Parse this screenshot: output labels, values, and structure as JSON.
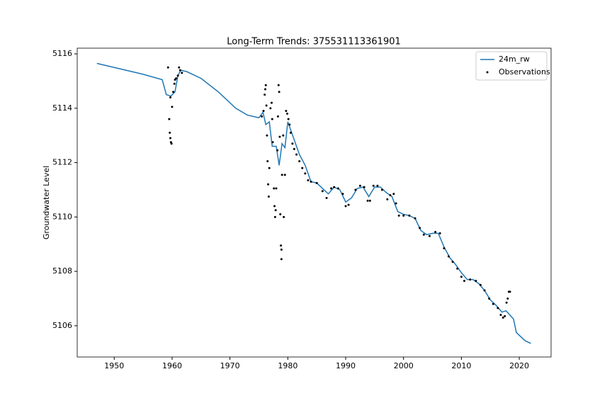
{
  "chart_data": {
    "type": "line_scatter",
    "title": "Long-Term Trends: 375531113361901",
    "y_label": "Groundwater Level",
    "xlim": [
      1943.6,
      2025.5
    ],
    "ylim": [
      5104.85,
      5116.21
    ],
    "xticks": [
      1950,
      1960,
      1970,
      1980,
      1990,
      2000,
      2010,
      2020
    ],
    "yticks": [
      5106,
      5108,
      5110,
      5112,
      5114,
      5116
    ],
    "legend": "upper right",
    "series": [
      {
        "name": "24m_rw",
        "kind": "line",
        "color": "#1f77b4",
        "x": [
          1947,
          1950,
          1955,
          1958.3,
          1959,
          1959.8,
          1960.5,
          1961,
          1961.5,
          1962.5,
          1965,
          1968,
          1971,
          1973,
          1975,
          1975.7,
          1976.2,
          1976.8,
          1977.3,
          1978,
          1978.5,
          1979,
          1979.5,
          1980,
          1981,
          1982,
          1983,
          1984,
          1985,
          1986,
          1987,
          1988,
          1989,
          1990,
          1991,
          1992,
          1993,
          1994,
          1995,
          1996,
          1997,
          1998,
          1999,
          2000,
          2001,
          2002,
          2003,
          2004,
          2005,
          2006,
          2007,
          2008,
          2009,
          2010,
          2011,
          2012,
          2013,
          2014,
          2015,
          2016,
          2017,
          2017.7,
          2019,
          2019.5,
          2021,
          2022
        ],
        "values": [
          5115.65,
          5115.5,
          5115.25,
          5115.05,
          5114.5,
          5114.45,
          5114.6,
          5115.2,
          5115.4,
          5115.35,
          5115.1,
          5114.6,
          5114.0,
          5113.75,
          5113.65,
          5113.85,
          5113.4,
          5113.5,
          5112.6,
          5112.6,
          5111.9,
          5112.7,
          5112.55,
          5113.5,
          5112.9,
          5112.3,
          5111.9,
          5111.3,
          5111.25,
          5111.05,
          5110.85,
          5111.1,
          5111.0,
          5110.55,
          5110.7,
          5111.05,
          5111.1,
          5110.75,
          5111.1,
          5111.1,
          5110.9,
          5110.75,
          5110.2,
          5110.1,
          5110.05,
          5109.95,
          5109.5,
          5109.35,
          5109.4,
          5109.4,
          5108.9,
          5108.5,
          5108.25,
          5107.95,
          5107.7,
          5107.7,
          5107.55,
          5107.3,
          5106.95,
          5106.75,
          5106.5,
          5106.55,
          5106.25,
          5105.75,
          5105.45,
          5105.35
        ]
      },
      {
        "name": "Observations",
        "kind": "scatter",
        "color": "#000000",
        "x": [
          1959.3,
          1959.5,
          1959.6,
          1959.7,
          1959.8,
          1959.9,
          1959.7,
          1960.0,
          1960.2,
          1960.4,
          1960.5,
          1960.7,
          1961.0,
          1961.2,
          1961.4,
          1961.7,
          1975.5,
          1975.8,
          1976.0,
          1976.1,
          1976.2,
          1976.3,
          1976.4,
          1976.5,
          1976.6,
          1976.7,
          1976.8,
          1977.0,
          1977.2,
          1977.3,
          1977.4,
          1977.6,
          1977.7,
          1977.8,
          1977.9,
          1978.0,
          1978.2,
          1978.3,
          1978.4,
          1978.5,
          1978.6,
          1978.7,
          1978.8,
          1978.9,
          1978.9,
          1979.0,
          1979.2,
          1979.3,
          1979.5,
          1979.7,
          1979.9,
          1980.1,
          1980.3,
          1980.5,
          1980.8,
          1981.1,
          1981.5,
          1982,
          1982.5,
          1983,
          1983.5,
          1984,
          1985,
          1986,
          1986.7,
          1987.5,
          1988,
          1988.7,
          1989.5,
          1990,
          1990.5,
          1991.7,
          1992.5,
          1993.2,
          1993.8,
          1994.2,
          1994.8,
          1995.5,
          1996.3,
          1997.2,
          1997.7,
          1998.3,
          1998.7,
          1999.2,
          2000,
          2001,
          2002,
          2002.8,
          2003.5,
          2004.5,
          2005.5,
          2006.3,
          2007,
          2007.8,
          2008.5,
          2009.3,
          2010,
          2010.5,
          2011.5,
          2012.5,
          2013.3,
          2014,
          2014.8,
          2015.5,
          2016.3,
          2016.8,
          2017.2,
          2017.5,
          2017.8,
          2018.0,
          2018.2,
          2018.4
        ],
        "values": [
          5115.5,
          5113.6,
          5113.1,
          5112.9,
          5112.75,
          5112.7,
          5114.4,
          5114.05,
          5114.6,
          5114.9,
          5115.05,
          5115.1,
          5115.2,
          5115.5,
          5115.4,
          5115.3,
          5113.7,
          5113.9,
          5114.5,
          5114.7,
          5114.85,
          5114.1,
          5113.0,
          5112.05,
          5111.2,
          5110.75,
          5111.8,
          5114.0,
          5114.2,
          5113.6,
          5112.75,
          5111.05,
          5110.4,
          5110.0,
          5110.25,
          5111.05,
          5112.45,
          5113.7,
          5114.85,
          5114.6,
          5112.95,
          5110.1,
          5108.95,
          5108.8,
          5108.45,
          5111.55,
          5113.0,
          5110.0,
          5111.55,
          5113.9,
          5113.8,
          5113.6,
          5113.4,
          5113.1,
          5112.7,
          5112.5,
          5112.3,
          5112.05,
          5111.8,
          5111.6,
          5111.35,
          5111.3,
          5111.25,
          5110.95,
          5110.7,
          5111.05,
          5111.1,
          5111.05,
          5110.85,
          5110.4,
          5110.45,
          5111.0,
          5111.15,
          5111.1,
          5110.6,
          5110.6,
          5111.15,
          5111.15,
          5111.0,
          5110.65,
          5110.8,
          5110.85,
          5110.5,
          5110.05,
          5110.05,
          5110.05,
          5109.95,
          5109.6,
          5109.35,
          5109.3,
          5109.45,
          5109.4,
          5108.85,
          5108.55,
          5108.35,
          5108.1,
          5107.8,
          5107.65,
          5107.7,
          5107.65,
          5107.5,
          5107.3,
          5107.0,
          5106.8,
          5106.65,
          5106.4,
          5106.3,
          5106.35,
          5106.85,
          5107.0,
          5107.25,
          5107.25
        ]
      }
    ]
  }
}
